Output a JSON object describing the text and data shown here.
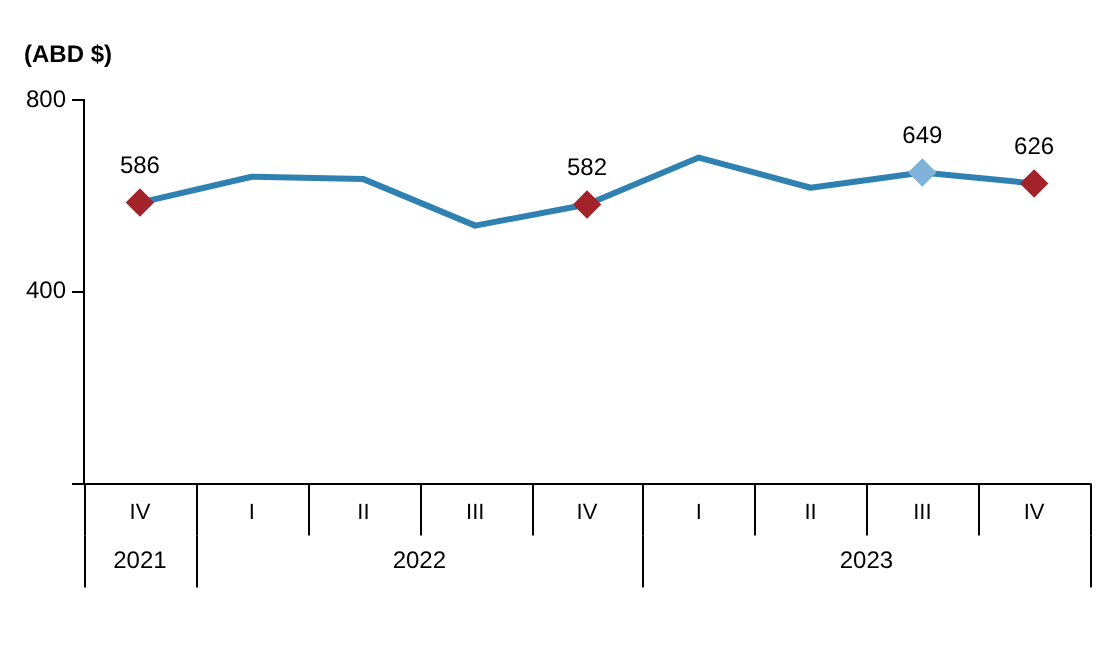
{
  "chart_data": {
    "type": "line",
    "title": "(ABD $)",
    "categories": [
      "IV",
      "I",
      "II",
      "III",
      "IV",
      "I",
      "II",
      "III",
      "IV"
    ],
    "annotations": [
      "2021",
      "2022",
      "2023"
    ],
    "series": [
      {
        "color": "#2e81b0",
        "values": [
          586,
          640,
          635,
          538,
          582,
          680,
          617,
          649,
          626
        ],
        "colors": [
          "#a3232a",
          null,
          null,
          null,
          "#a3232a",
          null,
          null,
          "#7fb2d8",
          "#a3232a"
        ],
        "value_labels": [
          "586",
          null,
          null,
          null,
          "582",
          null,
          null,
          "649",
          "626"
        ]
      }
    ],
    "ylim": [
      0,
      800
    ],
    "yticks": [
      {
        "value": 0,
        "label": null
      },
      400,
      800
    ],
    "grid": false,
    "legend": false,
    "line_style": "solid"
  }
}
